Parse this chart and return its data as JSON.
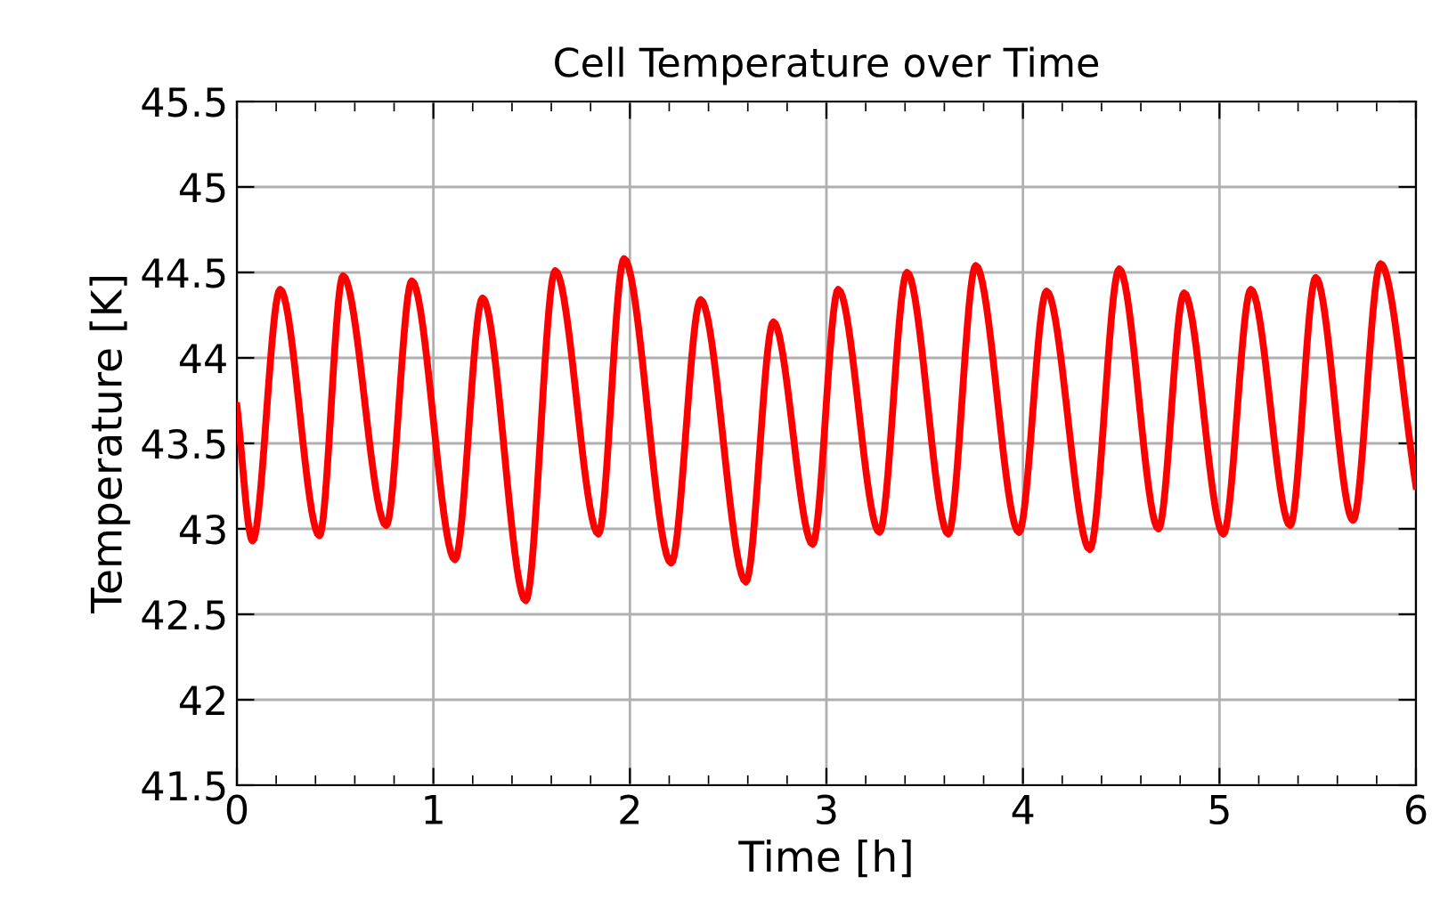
{
  "chart_data": {
    "type": "line",
    "title": "Cell Temperature over Time",
    "xlabel": "Time [h]",
    "ylabel": "Temperature [K]",
    "x": [
      0,
      0.08,
      0.22,
      0.42,
      0.54,
      0.76,
      0.89,
      1.11,
      1.25,
      1.47,
      1.62,
      1.84,
      1.97,
      2.21,
      2.36,
      2.59,
      2.73,
      2.93,
      3.06,
      3.27,
      3.41,
      3.62,
      3.76,
      3.98,
      4.12,
      4.34,
      4.49,
      4.69,
      4.82,
      5.02,
      5.16,
      5.36,
      5.49,
      5.68,
      5.82,
      6
    ],
    "series": [
      {
        "color": "#ff0000",
        "values": [
          43.72,
          42.93,
          44.4,
          42.96,
          44.48,
          43.02,
          44.45,
          42.82,
          44.35,
          42.58,
          44.51,
          42.97,
          44.58,
          42.8,
          44.34,
          42.69,
          44.21,
          42.91,
          44.4,
          42.98,
          44.5,
          42.97,
          44.54,
          42.98,
          44.39,
          42.88,
          44.52,
          43.0,
          44.38,
          42.97,
          44.4,
          43.02,
          44.47,
          43.05,
          44.55,
          43.25
        ]
      }
    ],
    "xlim": [
      0,
      6
    ],
    "xticks": [
      0,
      1,
      2,
      3,
      4,
      5,
      6
    ],
    "ylim": [
      41.5,
      45.5
    ],
    "yticks": [
      41.5,
      42,
      42.5,
      43,
      43.5,
      44,
      44.5,
      45,
      45.5
    ],
    "grid": true,
    "legend": false,
    "marker": "none",
    "line_style": "solid"
  }
}
